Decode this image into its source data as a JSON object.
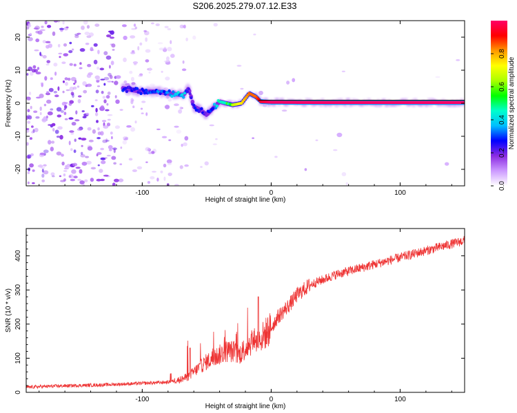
{
  "title": "S206.2025.279.07.12.E33",
  "chart_data": [
    {
      "type": "heatmap",
      "title": "S206.2025.279.07.12.E33",
      "xlabel": "Height of straight line (km)",
      "ylabel": "Frequency (Hz)",
      "xlim": [
        -190,
        150
      ],
      "ylim": [
        -25,
        25
      ],
      "xticks": [
        -100,
        0,
        100
      ],
      "yticks": [
        -20,
        -10,
        0,
        10,
        20
      ],
      "colorbar": {
        "label": "Normalized spectral amplitude",
        "range": [
          0,
          1
        ],
        "ticks": [
          0,
          0.2,
          0.4,
          0.6,
          0.8
        ],
        "colormap": [
          "#ffffff",
          "#cc99ff",
          "#8a2be2",
          "#0000ff",
          "#00bfff",
          "#00ffcc",
          "#00ff00",
          "#aaff00",
          "#ffff00",
          "#ff9900",
          "#ff0000",
          "#ff0066"
        ]
      },
      "ridge": [
        {
          "x": -115,
          "f": 4.5,
          "amp": 0.3
        },
        {
          "x": -100,
          "f": 3.5,
          "amp": 0.3
        },
        {
          "x": -88,
          "f": 3.5,
          "amp": 0.35
        },
        {
          "x": -80,
          "f": 3.0,
          "amp": 0.4
        },
        {
          "x": -68,
          "f": 2.5,
          "amp": 0.45
        },
        {
          "x": -64,
          "f": 4.5,
          "amp": 0.3
        },
        {
          "x": -60,
          "f": -1.0,
          "amp": 0.3
        },
        {
          "x": -55,
          "f": -2.0,
          "amp": 0.3
        },
        {
          "x": -50,
          "f": -3.5,
          "amp": 0.25
        },
        {
          "x": -45,
          "f": -1.5,
          "amp": 0.35
        },
        {
          "x": -40,
          "f": 0.5,
          "amp": 0.5
        },
        {
          "x": -30,
          "f": -0.5,
          "amp": 0.65
        },
        {
          "x": -23,
          "f": 0.0,
          "amp": 0.75
        },
        {
          "x": -17,
          "f": 3.0,
          "amp": 0.85
        },
        {
          "x": -12,
          "f": 2.0,
          "amp": 0.85
        },
        {
          "x": -8,
          "f": 0.5,
          "amp": 0.95
        },
        {
          "x": 0,
          "f": 0.3,
          "amp": 1.0
        },
        {
          "x": 50,
          "f": 0.2,
          "amp": 1.0
        },
        {
          "x": 100,
          "f": 0.2,
          "amp": 1.0
        },
        {
          "x": 150,
          "f": 0.2,
          "amp": 1.0
        }
      ]
    },
    {
      "type": "line",
      "xlabel": "Height of straight line (km)",
      "ylabel": "SNR (10 * v/v)",
      "xlim": [
        -190,
        150
      ],
      "ylim": [
        0,
        480
      ],
      "xticks": [
        -100,
        0,
        100
      ],
      "yticks": [
        0,
        100,
        200,
        300,
        400
      ],
      "series": [
        {
          "name": "SNR",
          "color": "#ee3333",
          "x": [
            -190,
            -170,
            -150,
            -130,
            -110,
            -90,
            -80,
            -70,
            -65,
            -60,
            -55,
            -50,
            -45,
            -40,
            -35,
            -30,
            -25,
            -20,
            -15,
            -10,
            -5,
            0,
            5,
            10,
            15,
            20,
            30,
            40,
            50,
            60,
            70,
            80,
            90,
            100,
            110,
            120,
            130,
            140,
            150
          ],
          "y": [
            15,
            18,
            20,
            22,
            25,
            28,
            30,
            38,
            45,
            60,
            75,
            90,
            100,
            110,
            120,
            120,
            110,
            130,
            150,
            150,
            170,
            190,
            220,
            240,
            260,
            285,
            315,
            330,
            345,
            355,
            365,
            375,
            385,
            395,
            405,
            415,
            425,
            435,
            445
          ]
        }
      ]
    }
  ]
}
